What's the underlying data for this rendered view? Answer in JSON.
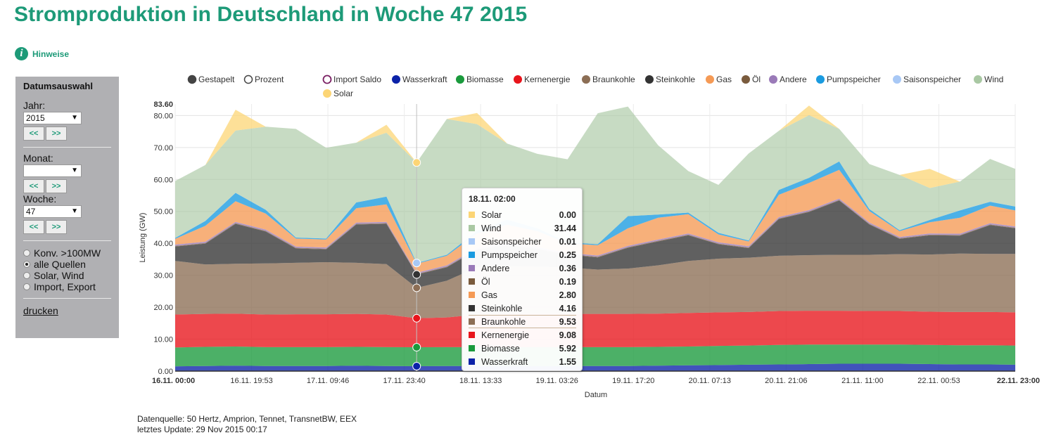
{
  "page": {
    "title": "Stromproduktion in Deutschland in Woche 47 2015",
    "hinweise": "Hinweise",
    "hinweise_icon": "info-icon"
  },
  "sidebar": {
    "title": "Datumsauswahl",
    "year_label": "Jahr:",
    "year_value": "2015",
    "month_label": "Monat:",
    "month_value": "",
    "week_label": "Woche:",
    "week_value": "47",
    "prev_label": "<<",
    "next_label": ">>",
    "radios": [
      {
        "label": "Konv. >100MW",
        "checked": false
      },
      {
        "label": "alle Quellen",
        "checked": true
      },
      {
        "label": "Solar, Wind",
        "checked": false
      },
      {
        "label": "Import, Export",
        "checked": false
      }
    ],
    "print_label": "drucken"
  },
  "legend": {
    "modes": [
      {
        "label": "Gestapelt",
        "selected": true
      },
      {
        "label": "Prozent",
        "selected": false
      }
    ],
    "series": [
      {
        "label": "Import Saldo",
        "color": "#7a1f63",
        "hollow": true
      },
      {
        "label": "Wasserkraft",
        "color": "#0b22a8"
      },
      {
        "label": "Biomasse",
        "color": "#1a9a3c"
      },
      {
        "label": "Kernenergie",
        "color": "#e8141b"
      },
      {
        "label": "Braunkohle",
        "color": "#8c6e55"
      },
      {
        "label": "Steinkohle",
        "color": "#333333"
      },
      {
        "label": "Gas",
        "color": "#f59a55"
      },
      {
        "label": "Öl",
        "color": "#7a5b3d"
      },
      {
        "label": "Andere",
        "color": "#9a7ab8"
      },
      {
        "label": "Pumpspeicher",
        "color": "#1a9be0"
      },
      {
        "label": "Saisonspeicher",
        "color": "#a8c8f5"
      },
      {
        "label": "Wind",
        "color": "#a9c8a3"
      },
      {
        "label": "Solar",
        "color": "#fcd575"
      }
    ]
  },
  "chart_data": {
    "type": "area",
    "stacked": true,
    "ylabel": "Leistung (GW)",
    "xlabel": "Datum",
    "ylim": [
      0,
      83.6
    ],
    "ymax_label": "83.60",
    "yticks": [
      "0.00",
      "10.00",
      "20.00",
      "30.00",
      "40.00",
      "50.00",
      "60.00",
      "70.00",
      "80.00"
    ],
    "xticks": [
      {
        "label": "16.11. 00:00",
        "bold": true
      },
      {
        "label": "16.11. 19:53",
        "bold": false
      },
      {
        "label": "17.11. 09:46",
        "bold": false
      },
      {
        "label": "17.11. 23:40",
        "bold": false
      },
      {
        "label": "18.11. 13:33",
        "bold": false
      },
      {
        "label": "19.11. 03:26",
        "bold": false
      },
      {
        "label": "19.11. 17:20",
        "bold": false
      },
      {
        "label": "20.11. 07:13",
        "bold": false
      },
      {
        "label": "20.11. 21:06",
        "bold": false
      },
      {
        "label": "21.11. 11:00",
        "bold": false
      },
      {
        "label": "22.11. 00:53",
        "bold": false
      },
      {
        "label": "22.11. 23:00",
        "bold": true
      }
    ],
    "x_hours": [
      0,
      6,
      12,
      18,
      24,
      30,
      36,
      42,
      48,
      54,
      60,
      66,
      72,
      78,
      84,
      90,
      96,
      102,
      108,
      114,
      120,
      126,
      132,
      138,
      144,
      150,
      156,
      162,
      167
    ],
    "series": [
      {
        "name": "Wasserkraft",
        "values": [
          1.5,
          1.6,
          1.7,
          1.6,
          1.6,
          1.6,
          1.7,
          1.6,
          1.55,
          1.6,
          1.6,
          1.6,
          1.6,
          1.6,
          1.6,
          1.6,
          1.7,
          1.8,
          1.9,
          2.0,
          2.1,
          2.2,
          2.3,
          2.3,
          2.3,
          2.2,
          2.1,
          2.1,
          2.0
        ]
      },
      {
        "name": "Biomasse",
        "values": [
          5.9,
          6.0,
          6.0,
          5.9,
          5.9,
          5.9,
          5.9,
          5.9,
          5.92,
          5.9,
          5.9,
          5.9,
          5.9,
          5.9,
          5.9,
          5.9,
          5.9,
          5.9,
          6.0,
          6.0,
          6.1,
          6.1,
          6.0,
          6.0,
          6.0,
          6.0,
          6.0,
          6.0,
          6.0
        ]
      },
      {
        "name": "Kernenergie",
        "values": [
          10.3,
          10.3,
          10.3,
          10.2,
          10.3,
          10.3,
          10.3,
          10.2,
          9.08,
          9.3,
          10.2,
          10.3,
          10.3,
          10.4,
          10.4,
          10.4,
          10.4,
          10.5,
          10.5,
          10.5,
          10.6,
          10.6,
          10.6,
          10.5,
          10.5,
          10.4,
          10.4,
          10.4,
          10.4
        ]
      },
      {
        "name": "Braunkohle",
        "values": [
          16.8,
          15.5,
          15.6,
          16.0,
          16.1,
          16.3,
          16.0,
          15.8,
          9.53,
          11.5,
          14.8,
          15.1,
          14.9,
          14.5,
          13.9,
          14.2,
          15.1,
          16.3,
          16.8,
          17.0,
          17.3,
          17.4,
          17.5,
          17.6,
          17.8,
          17.9,
          18.3,
          18.2,
          18.3
        ]
      },
      {
        "name": "Steinkohle",
        "values": [
          4.5,
          6.5,
          12.5,
          10.0,
          4.5,
          4.0,
          12.0,
          12.6,
          4.16,
          4.2,
          5.5,
          6.5,
          5.5,
          4.0,
          3.8,
          6.5,
          7.5,
          8.0,
          4.5,
          3.0,
          11.5,
          13.5,
          17.0,
          9.5,
          4.8,
          6.0,
          5.6,
          9.0,
          8.0
        ]
      },
      {
        "name": "Öl",
        "values": [
          0.2,
          0.2,
          0.2,
          0.2,
          0.2,
          0.2,
          0.2,
          0.2,
          0.19,
          0.2,
          0.2,
          0.2,
          0.2,
          0.2,
          0.2,
          0.2,
          0.2,
          0.2,
          0.2,
          0.2,
          0.2,
          0.2,
          0.2,
          0.2,
          0.2,
          0.2,
          0.2,
          0.2,
          0.2
        ]
      },
      {
        "name": "Andere",
        "values": [
          0.4,
          0.4,
          0.4,
          0.4,
          0.4,
          0.4,
          0.4,
          0.4,
          0.36,
          0.4,
          0.4,
          0.4,
          0.4,
          0.4,
          0.4,
          0.4,
          0.4,
          0.4,
          0.4,
          0.4,
          0.4,
          0.4,
          0.4,
          0.4,
          0.4,
          0.4,
          0.4,
          0.4,
          0.4
        ]
      },
      {
        "name": "Gas",
        "values": [
          1.8,
          5.0,
          6.5,
          5.0,
          2.5,
          2.5,
          4.5,
          5.5,
          2.8,
          3.0,
          4.5,
          5.8,
          5.0,
          3.0,
          3.2,
          5.5,
          6.8,
          6.0,
          2.5,
          1.5,
          7.0,
          8.5,
          9.0,
          3.6,
          1.8,
          3.5,
          5.0,
          5.5,
          5.0
        ]
      },
      {
        "name": "Pumpspeicher",
        "values": [
          0.3,
          1.5,
          2.6,
          1.2,
          0.3,
          0.3,
          1.8,
          2.4,
          0.25,
          0.3,
          0.8,
          1.6,
          0.9,
          0.3,
          0.3,
          3.8,
          1.0,
          0.5,
          0.5,
          0.3,
          1.5,
          1.6,
          2.6,
          0.6,
          0.3,
          0.7,
          2.3,
          1.2,
          1.2
        ]
      },
      {
        "name": "Saisonspeicher",
        "values": [
          0.01,
          0.01,
          0.01,
          0.01,
          0.01,
          0.01,
          0.01,
          0.01,
          0.01,
          0.01,
          0.01,
          0.01,
          0.01,
          0.01,
          0.01,
          0.01,
          0.01,
          0.01,
          0.01,
          0.01,
          0.01,
          0.01,
          0.01,
          0.01,
          0.01,
          0.01,
          0.01,
          0.01,
          0.01
        ]
      },
      {
        "name": "Wind",
        "values": [
          17.8,
          17.5,
          19.5,
          26.0,
          34.0,
          28.4,
          18.7,
          20.0,
          31.44,
          42.5,
          33.4,
          23.8,
          23.3,
          26.0,
          41.0,
          34.3,
          21.7,
          13.0,
          15.0,
          27.2,
          18.5,
          19.6,
          10.2,
          14.1,
          17.3,
          10.0,
          9.0,
          13.4,
          11.8
        ]
      },
      {
        "name": "Solar",
        "values": [
          0,
          0,
          6.5,
          0,
          0,
          0,
          0,
          2.5,
          0,
          0,
          3.5,
          0,
          0,
          0,
          0,
          0,
          0,
          0,
          0,
          0,
          0,
          3.0,
          0,
          0,
          0,
          6.0,
          0,
          0,
          0
        ]
      }
    ]
  },
  "tooltip": {
    "title": "18.11. 02:00",
    "rows": [
      {
        "name": "Solar",
        "value": "0.00",
        "color": "#fcd575"
      },
      {
        "name": "Wind",
        "value": "31.44",
        "color": "#a9c8a3"
      },
      {
        "name": "Saisonspeicher",
        "value": "0.01",
        "color": "#a8c8f5"
      },
      {
        "name": "Pumpspeicher",
        "value": "0.25",
        "color": "#1a9be0"
      },
      {
        "name": "Andere",
        "value": "0.36",
        "color": "#9a7ab8"
      },
      {
        "name": "Öl",
        "value": "0.19",
        "color": "#7a5b3d"
      },
      {
        "name": "Gas",
        "value": "2.80",
        "color": "#f59a55"
      },
      {
        "name": "Steinkohle",
        "value": "4.16",
        "color": "#333333"
      },
      {
        "name": "Braunkohle",
        "value": "9.53",
        "color": "#8c6e55",
        "highlight": true
      },
      {
        "name": "Kernenergie",
        "value": "9.08",
        "color": "#e8141b"
      },
      {
        "name": "Biomasse",
        "value": "5.92",
        "color": "#1a9a3c"
      },
      {
        "name": "Wasserkraft",
        "value": "1.55",
        "color": "#0b22a8"
      }
    ]
  },
  "footer": {
    "source": "Datenquelle: 50 Hertz, Amprion, Tennet, TransnetBW, EEX",
    "update": "letztes Update: 29 Nov 2015 00:17"
  }
}
